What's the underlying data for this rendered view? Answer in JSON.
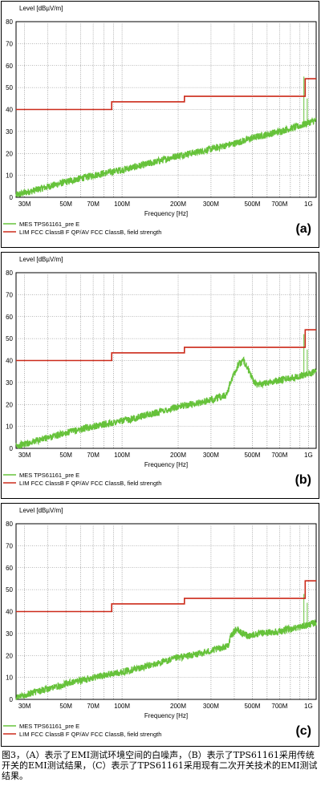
{
  "chart_data": [
    {
      "type": "line",
      "panel_label": "(a)",
      "ylabel": "Level [dBµV/m]",
      "xlabel": "Frequency [Hz]",
      "x_scale": "log",
      "xlim_mhz": [
        27,
        1100
      ],
      "ylim": [
        0,
        80
      ],
      "y_ticks": [
        0,
        10,
        20,
        30,
        40,
        50,
        60,
        70,
        80
      ],
      "x_ticks": [
        {
          "mhz": 30,
          "label": "30M"
        },
        {
          "mhz": 50,
          "label": "50M"
        },
        {
          "mhz": 70,
          "label": "70M"
        },
        {
          "mhz": 100,
          "label": "100M"
        },
        {
          "mhz": 200,
          "label": "200M"
        },
        {
          "mhz": 300,
          "label": "300M"
        },
        {
          "mhz": 500,
          "label": "500M"
        },
        {
          "mhz": 700,
          "label": "700M"
        },
        {
          "mhz": 1000,
          "label": "1G"
        }
      ],
      "grid": true,
      "series": [
        {
          "name": "MES  TPS61161_pre E",
          "color": "#66c23a",
          "x": [
            27,
            30,
            50,
            70,
            100,
            150,
            200,
            250,
            300,
            400,
            500,
            700,
            900,
            1000,
            1100
          ],
          "y": [
            1,
            2,
            7,
            10,
            12.5,
            16,
            19,
            20.5,
            22,
            24.5,
            27,
            30,
            32.5,
            34,
            35
          ]
        },
        {
          "name": "LIM  FCC ClassB F QP/AV   FCC ClassB, field strength",
          "color": "#cc2a1a",
          "x": [
            27,
            88,
            88,
            216,
            216,
            960,
            960,
            1100
          ],
          "y": [
            40,
            40,
            43.5,
            43.5,
            46,
            46,
            54,
            54
          ]
        }
      ],
      "spikes": [
        {
          "x": 945,
          "y": 55
        },
        {
          "x": 985,
          "y": 45
        }
      ]
    },
    {
      "type": "line",
      "panel_label": "(b)",
      "ylabel": "Level [dBµV/m]",
      "xlabel": "Frequency [Hz]",
      "x_scale": "log",
      "xlim_mhz": [
        27,
        1100
      ],
      "ylim": [
        0,
        80
      ],
      "y_ticks": [
        0,
        10,
        20,
        30,
        40,
        50,
        60,
        70,
        80
      ],
      "x_ticks": [
        {
          "mhz": 30,
          "label": "30M"
        },
        {
          "mhz": 50,
          "label": "50M"
        },
        {
          "mhz": 70,
          "label": "70M"
        },
        {
          "mhz": 100,
          "label": "100M"
        },
        {
          "mhz": 200,
          "label": "200M"
        },
        {
          "mhz": 300,
          "label": "300M"
        },
        {
          "mhz": 500,
          "label": "500M"
        },
        {
          "mhz": 700,
          "label": "700M"
        },
        {
          "mhz": 1000,
          "label": "1G"
        }
      ],
      "grid": true,
      "series": [
        {
          "name": "MES  TPS61161_pre E",
          "color": "#66c23a",
          "x": [
            27,
            30,
            50,
            70,
            100,
            150,
            200,
            250,
            300,
            360,
            390,
            420,
            450,
            480,
            520,
            600,
            700,
            900,
            1000,
            1100
          ],
          "y": [
            1,
            2,
            7,
            10,
            12.5,
            16,
            19,
            20.5,
            22,
            24,
            32,
            38,
            40,
            35,
            29,
            30,
            31,
            33,
            34,
            35
          ]
        },
        {
          "name": "LIM  FCC ClassB F QP/AV   FCC ClassB, field strength",
          "color": "#cc2a1a",
          "x": [
            27,
            88,
            88,
            216,
            216,
            960,
            960,
            1100
          ],
          "y": [
            40,
            40,
            43.5,
            43.5,
            46,
            46,
            54,
            54
          ]
        }
      ],
      "spikes": [
        {
          "x": 945,
          "y": 52
        },
        {
          "x": 985,
          "y": 45
        }
      ]
    },
    {
      "type": "line",
      "panel_label": "(c)",
      "ylabel": "Level [dBµV/m]",
      "xlabel": "Frequency [Hz]",
      "x_scale": "log",
      "xlim_mhz": [
        27,
        1100
      ],
      "ylim": [
        0,
        80
      ],
      "y_ticks": [
        0,
        10,
        20,
        30,
        40,
        50,
        60,
        70,
        80
      ],
      "x_ticks": [
        {
          "mhz": 30,
          "label": "30M"
        },
        {
          "mhz": 50,
          "label": "50M"
        },
        {
          "mhz": 70,
          "label": "70M"
        },
        {
          "mhz": 100,
          "label": "100M"
        },
        {
          "mhz": 200,
          "label": "200M"
        },
        {
          "mhz": 300,
          "label": "300M"
        },
        {
          "mhz": 500,
          "label": "500M"
        },
        {
          "mhz": 700,
          "label": "700M"
        },
        {
          "mhz": 1000,
          "label": "1G"
        }
      ],
      "grid": true,
      "series": [
        {
          "name": "MES  TPS61161_pre E",
          "color": "#66c23a",
          "x": [
            27,
            30,
            50,
            70,
            100,
            150,
            200,
            250,
            300,
            370,
            385,
            410,
            440,
            480,
            550,
            700,
            900,
            1000,
            1100
          ],
          "y": [
            1,
            2,
            7,
            10,
            12.5,
            16,
            19,
            20.5,
            22,
            24.5,
            29,
            32,
            30,
            29,
            30,
            31,
            33,
            34,
            35
          ]
        },
        {
          "name": "LIM  FCC ClassB F QP/AV   FCC ClassB, field strength",
          "color": "#cc2a1a",
          "x": [
            27,
            88,
            88,
            216,
            216,
            960,
            960,
            1100
          ],
          "y": [
            40,
            40,
            43.5,
            43.5,
            46,
            46,
            54,
            54
          ]
        }
      ],
      "spikes": [
        {
          "x": 945,
          "y": 48
        },
        {
          "x": 985,
          "y": 44
        }
      ]
    }
  ],
  "caption": "图3，（A）表示了EMI测试环境空间的白噪声，（B）表示了TPS61161采用传统开关的EMI测试结果，（C）表示了TPS61161采用现有二次开关技术的EMI测试结果。"
}
